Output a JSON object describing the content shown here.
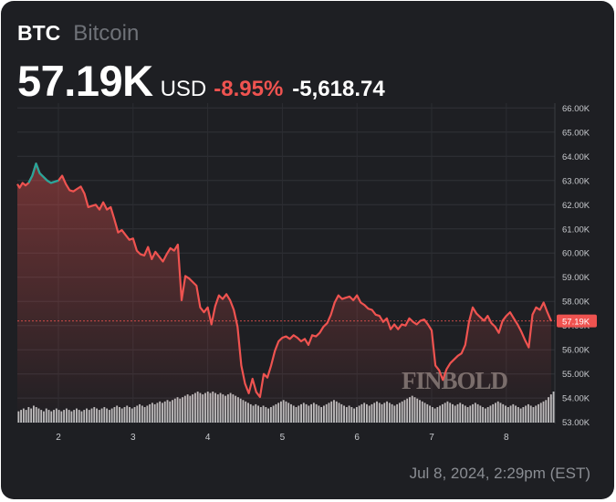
{
  "header": {
    "ticker": "BTC",
    "name": "Bitcoin",
    "price": "57.19K",
    "currency": "USD",
    "change_pct": "-8.95%",
    "change_abs": "-5,618.74"
  },
  "watermark": "FINBOLD",
  "timestamp": "Jul 8, 2024, 2:29pm (EST)",
  "colors": {
    "background": "#1e1f23",
    "up": "#26a69a",
    "down": "#ef5350",
    "volume": "#d9d9d9",
    "text": "#ffffff",
    "muted": "#6f7278"
  },
  "chart_data": {
    "type": "line",
    "title": "",
    "xlabel": "",
    "ylabel": "",
    "x_tick_labels": [
      "2",
      "3",
      "4",
      "5",
      "6",
      "7",
      "8"
    ],
    "x_ticks": [
      2,
      3,
      4,
      5,
      6,
      7,
      8
    ],
    "y_tick_labels": [
      "53.00K",
      "54.00K",
      "55.00K",
      "56.00K",
      "57.00K",
      "58.00K",
      "59.00K",
      "60.00K",
      "61.00K",
      "62.00K",
      "63.00K",
      "64.00K",
      "65.00K",
      "66.00K"
    ],
    "ylim": [
      52.95,
      66.2
    ],
    "xlim": [
      1.45,
      8.65
    ],
    "grid": true,
    "last_price_label": "57.19K",
    "last_price": 57.19,
    "series": [
      {
        "x": [
          1.45,
          1.48,
          1.52,
          1.56,
          1.6,
          1.65,
          1.7,
          1.75,
          1.8,
          1.85,
          1.9,
          1.95,
          2.0,
          2.05,
          2.1,
          2.15,
          2.2,
          2.25,
          2.3,
          2.35,
          2.4,
          2.45,
          2.5,
          2.55,
          2.6,
          2.65,
          2.7,
          2.75,
          2.8,
          2.85,
          2.9,
          2.95,
          3.0,
          3.05,
          3.1,
          3.15,
          3.2,
          3.25,
          3.3,
          3.35,
          3.4,
          3.45,
          3.5,
          3.55,
          3.6,
          3.65,
          3.7,
          3.75,
          3.8,
          3.85,
          3.9,
          3.95,
          4.0,
          4.05,
          4.1,
          4.15,
          4.2,
          4.25,
          4.3,
          4.35,
          4.4,
          4.45,
          4.5,
          4.55,
          4.6,
          4.65,
          4.7,
          4.75,
          4.8,
          4.85,
          4.9,
          4.95,
          5.0,
          5.05,
          5.1,
          5.15,
          5.2,
          5.25,
          5.3,
          5.35,
          5.4,
          5.45,
          5.5,
          5.55,
          5.6,
          5.65,
          5.7,
          5.75,
          5.8,
          5.85,
          5.9,
          5.95,
          6.0,
          6.05,
          6.1,
          6.15,
          6.2,
          6.25,
          6.3,
          6.35,
          6.4,
          6.45,
          6.5,
          6.55,
          6.6,
          6.65,
          6.7,
          6.75,
          6.8,
          6.85,
          6.9,
          6.95,
          7.0,
          7.05,
          7.1,
          7.15,
          7.2,
          7.25,
          7.3,
          7.35,
          7.4,
          7.45,
          7.5,
          7.55,
          7.6,
          7.65,
          7.7,
          7.75,
          7.8,
          7.85,
          7.9,
          7.95,
          8.0,
          8.05,
          8.1,
          8.15,
          8.2,
          8.25,
          8.3,
          8.35,
          8.4,
          8.45,
          8.5,
          8.55,
          8.6
        ],
        "y": [
          62.85,
          62.7,
          62.9,
          62.8,
          62.9,
          63.2,
          63.7,
          63.3,
          63.15,
          63.0,
          62.9,
          62.95,
          63.0,
          63.2,
          62.85,
          62.6,
          62.55,
          62.65,
          62.75,
          62.45,
          61.9,
          61.95,
          62.0,
          61.8,
          62.1,
          61.8,
          61.9,
          61.4,
          60.85,
          60.95,
          60.75,
          60.55,
          60.6,
          60.1,
          59.95,
          59.9,
          60.25,
          59.75,
          60.05,
          59.85,
          59.65,
          59.95,
          60.2,
          60.1,
          60.35,
          58.05,
          59.05,
          58.95,
          58.8,
          58.65,
          57.75,
          57.55,
          57.75,
          57.05,
          57.8,
          58.25,
          58.1,
          58.3,
          58.05,
          57.65,
          56.95,
          55.35,
          54.6,
          54.2,
          54.8,
          54.25,
          54.05,
          55.0,
          54.85,
          55.35,
          55.95,
          56.35,
          56.5,
          56.55,
          56.45,
          56.6,
          56.5,
          56.35,
          56.45,
          56.2,
          56.6,
          56.55,
          56.7,
          56.95,
          57.1,
          57.45,
          57.95,
          58.25,
          58.1,
          58.15,
          58.2,
          58.05,
          58.25,
          57.95,
          57.85,
          57.7,
          57.65,
          57.45,
          57.4,
          57.15,
          57.3,
          56.85,
          57.05,
          56.85,
          57.05,
          57.0,
          57.3,
          57.15,
          57.05,
          57.2,
          57.25,
          57.05,
          56.8,
          55.35,
          55.15,
          54.75,
          55.2,
          55.45,
          55.6,
          55.75,
          55.85,
          56.2,
          57.15,
          57.75,
          57.5,
          57.35,
          57.2,
          57.4,
          57.1,
          56.95,
          56.7,
          57.2,
          57.4,
          57.55,
          57.3,
          57.05,
          56.75,
          56.4,
          56.1,
          57.45,
          57.75,
          57.65,
          57.95,
          57.55,
          57.19
        ],
        "up_until_x": 2.25
      }
    ],
    "volume": [
      8,
      9,
      10,
      9,
      11,
      10,
      12,
      11,
      10,
      9,
      8,
      10,
      9,
      8,
      9,
      10,
      9,
      8,
      9,
      10,
      9,
      8,
      9,
      10,
      9,
      8,
      9,
      10,
      9,
      10,
      11,
      10,
      9,
      10,
      11,
      10,
      9,
      10,
      11,
      12,
      11,
      10,
      11,
      12,
      11,
      10,
      11,
      12,
      13,
      12,
      11,
      12,
      13,
      14,
      13,
      14,
      15,
      14,
      15,
      16,
      15,
      16,
      17,
      18,
      17,
      18,
      19,
      20,
      19,
      20,
      21,
      22,
      21,
      20,
      21,
      22,
      21,
      22,
      21,
      20,
      21,
      20,
      19,
      20,
      21,
      20,
      19,
      18,
      17,
      16,
      15,
      14,
      13,
      12,
      13,
      12,
      11,
      12,
      11,
      10,
      11,
      12,
      13,
      14,
      15,
      16,
      15,
      14,
      13,
      12,
      11,
      12,
      13,
      14,
      13,
      12,
      13,
      14,
      13,
      12,
      11,
      12,
      13,
      14,
      15,
      16,
      15,
      14,
      13,
      12,
      11,
      12,
      11,
      10,
      11,
      12,
      13,
      14,
      13,
      12,
      13,
      14,
      15,
      14,
      13,
      14,
      15,
      14,
      13,
      12,
      13,
      14,
      15,
      16,
      17,
      18,
      19,
      18,
      17,
      16,
      15,
      14,
      13,
      12,
      11,
      10,
      11,
      12,
      13,
      14,
      15,
      14,
      13,
      12,
      13,
      14,
      13,
      12,
      11,
      12,
      13,
      14,
      13,
      12,
      11,
      10,
      11,
      12,
      13,
      14,
      15,
      14,
      13,
      12,
      11,
      12,
      13,
      12,
      11,
      10,
      11,
      12,
      13,
      12,
      11,
      12,
      13,
      14,
      15,
      16,
      18,
      20,
      22
    ]
  }
}
